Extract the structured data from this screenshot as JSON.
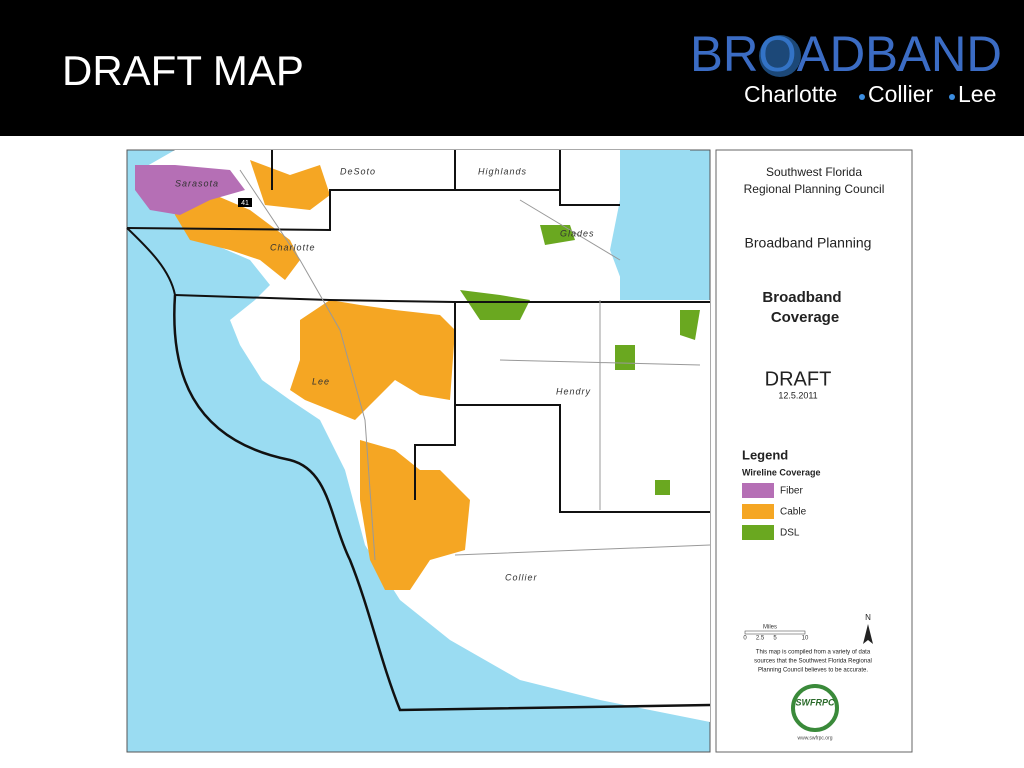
{
  "header": {
    "title": "DRAFT MAP",
    "logo": {
      "name": "BROADBAND",
      "regions": [
        "Charlotte",
        "Collier",
        "Lee"
      ]
    }
  },
  "map": {
    "labels": [
      "Sarasota",
      "DeSoto",
      "Highlands",
      "Charlotte",
      "Glades",
      "Lee",
      "Hendry",
      "Collier"
    ],
    "highway": "41"
  },
  "legend_panel": {
    "organization": [
      "Southwest Florida",
      "Regional Planning Council"
    ],
    "project": "Broadband Planning",
    "map_title": [
      "Broadband",
      "Coverage"
    ],
    "status": "DRAFT",
    "date": "12.5.2011",
    "legend_title": "Legend",
    "legend_subtitle": "Wireline Coverage",
    "items": [
      {
        "label": "Fiber",
        "color": "#b56fb5"
      },
      {
        "label": "Cable",
        "color": "#f5a623"
      },
      {
        "label": "DSL",
        "color": "#6aa820"
      }
    ],
    "scale": {
      "unit": "Miles",
      "ticks": [
        "0",
        "2.5",
        "5",
        "10"
      ]
    },
    "north": "N",
    "disclaimer": [
      "This map is compiled from a variety of data",
      "sources that the Southwest Florida Regional",
      "Planning Council believes to be accurate."
    ],
    "seal": "SWFRPC",
    "url": "www.swfrpc.org"
  }
}
